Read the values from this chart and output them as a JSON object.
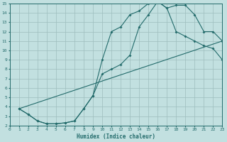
{
  "xlabel": "Humidex (Indice chaleur)",
  "xlim": [
    0,
    23
  ],
  "ylim": [
    2,
    15
  ],
  "xticks": [
    0,
    1,
    2,
    3,
    4,
    5,
    6,
    7,
    8,
    9,
    10,
    11,
    12,
    13,
    14,
    15,
    16,
    17,
    18,
    19,
    20,
    21,
    22,
    23
  ],
  "yticks": [
    2,
    3,
    4,
    5,
    6,
    7,
    8,
    9,
    10,
    11,
    12,
    13,
    14,
    15
  ],
  "bg_color": "#c2e0e0",
  "grid_color": "#9dbdbd",
  "line_color": "#236b6b",
  "curve1_x": [
    1,
    2,
    3,
    4,
    5,
    6,
    7,
    8,
    9,
    10,
    11,
    12,
    13,
    14,
    15,
    16,
    17,
    18,
    19,
    20,
    21,
    22,
    23
  ],
  "curve1_y": [
    3.8,
    3.2,
    2.5,
    2.2,
    2.2,
    2.3,
    2.5,
    3.8,
    5.2,
    9.0,
    12.0,
    12.5,
    13.8,
    14.2,
    15.0,
    15.2,
    14.5,
    14.8,
    14.8,
    13.8,
    12.0,
    12.0,
    11.0
  ],
  "curve2_x": [
    1,
    2,
    3,
    4,
    5,
    6,
    7,
    8,
    9,
    10,
    11,
    12,
    13,
    14,
    15,
    16,
    17,
    18,
    19,
    20,
    21,
    22,
    23
  ],
  "curve2_y": [
    3.8,
    3.2,
    2.5,
    2.2,
    2.2,
    2.3,
    2.5,
    3.8,
    5.2,
    7.5,
    8.0,
    8.5,
    9.5,
    12.5,
    13.8,
    15.2,
    14.5,
    12.0,
    11.5,
    11.0,
    10.5,
    10.2,
    9.0
  ],
  "curve3_x": [
    1,
    23
  ],
  "curve3_y": [
    3.8,
    11.0
  ]
}
